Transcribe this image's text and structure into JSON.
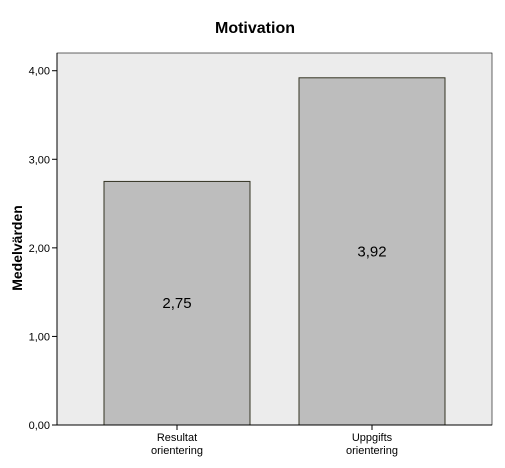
{
  "chart_data": {
    "type": "bar",
    "title": "Motivation",
    "xlabel": "",
    "ylabel": "Medelvärden",
    "categories": [
      [
        "Resultat",
        "orientering"
      ],
      [
        "Uppgifts",
        "orientering"
      ]
    ],
    "values": [
      2.75,
      3.92
    ],
    "data_labels": [
      "2,75",
      "3,92"
    ],
    "ylim": [
      0,
      4.2
    ],
    "yticks": [
      0,
      1,
      2,
      3,
      4
    ],
    "ytick_labels": [
      "0,00",
      "1,00",
      "2,00",
      "3,00",
      "4,00"
    ],
    "grid": false,
    "legend": "none",
    "colors": {
      "plot_background": "#ececec",
      "bar_fill": "#bdbdbd",
      "bar_stroke": "#333322",
      "axis": "#000000"
    }
  }
}
